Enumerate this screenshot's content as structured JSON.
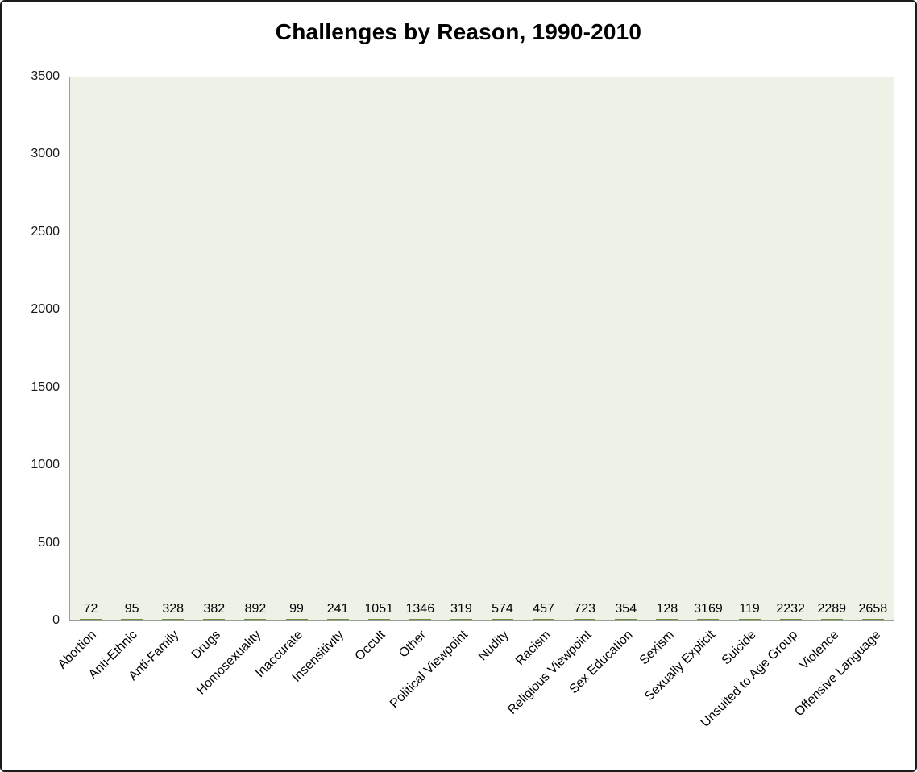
{
  "chart_data": {
    "type": "bar",
    "title": "Challenges by Reason, 1990-2010",
    "categories": [
      "Abortion",
      "Anti-Ethnic",
      "Anti-Family",
      "Drugs",
      "Homosexuality",
      "Inaccurate",
      "Insensitivity",
      "Occult",
      "Other",
      "Political Viewpoint",
      "Nudity",
      "Racism",
      "Religious Viewpoint",
      "Sex Education",
      "Sexism",
      "Sexually Explicit",
      "Suicide",
      "Unsuited to Age Group",
      "Violence",
      "Offensive Language"
    ],
    "values": [
      72,
      95,
      328,
      382,
      892,
      99,
      241,
      1051,
      1346,
      319,
      574,
      457,
      723,
      354,
      128,
      3169,
      119,
      2232,
      2289,
      2658
    ],
    "xlabel": "",
    "ylabel": "",
    "ylim": [
      0,
      3500
    ],
    "yticks": [
      0,
      500,
      1000,
      1500,
      2000,
      2500,
      3000,
      3500
    ],
    "grid": false,
    "legend": "none",
    "colors": {
      "bar_fill": "#9bbb59",
      "bar_border": "#6f8a3d",
      "plot_background": "#edf1e6",
      "frame_border": "#1a1a1a"
    }
  }
}
